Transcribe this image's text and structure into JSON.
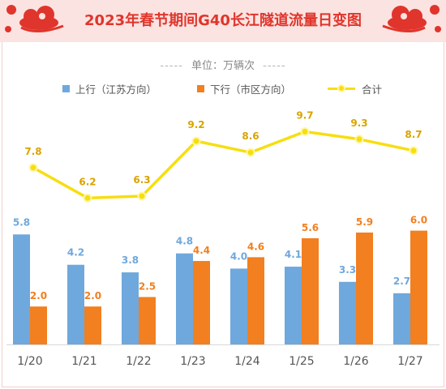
{
  "header": {
    "title": "2023年春节期间G40长江隧道流量日变图"
  },
  "subtitle": {
    "dashes_left": "-----",
    "text": "单位：万辆次",
    "dashes_right": "-----"
  },
  "colors": {
    "up": "#6fa8dc",
    "down": "#f27f20",
    "total": "#f7de10",
    "title": "#e0352c",
    "header_bg": "#fbe3e1"
  },
  "chart_data": {
    "type": "bar",
    "categories": [
      "1/20",
      "1/21",
      "1/22",
      "1/23",
      "1/24",
      "1/25",
      "1/26",
      "1/27"
    ],
    "series": [
      {
        "name": "上行（江苏方向）",
        "type": "bar",
        "values": [
          5.8,
          4.2,
          3.8,
          4.8,
          4.0,
          4.1,
          3.3,
          2.7
        ]
      },
      {
        "name": "下行（市区方向）",
        "type": "bar",
        "values": [
          2.0,
          2.0,
          2.5,
          4.4,
          4.6,
          5.6,
          5.9,
          6.0
        ]
      },
      {
        "name": "合计",
        "type": "line",
        "values": [
          7.8,
          6.2,
          6.3,
          9.2,
          8.6,
          9.7,
          9.3,
          8.7
        ]
      }
    ],
    "title": "2023年春节期间G40长江隧道流量日变图",
    "ylabel": "单位：万辆次",
    "legend": "top",
    "grid": false
  }
}
